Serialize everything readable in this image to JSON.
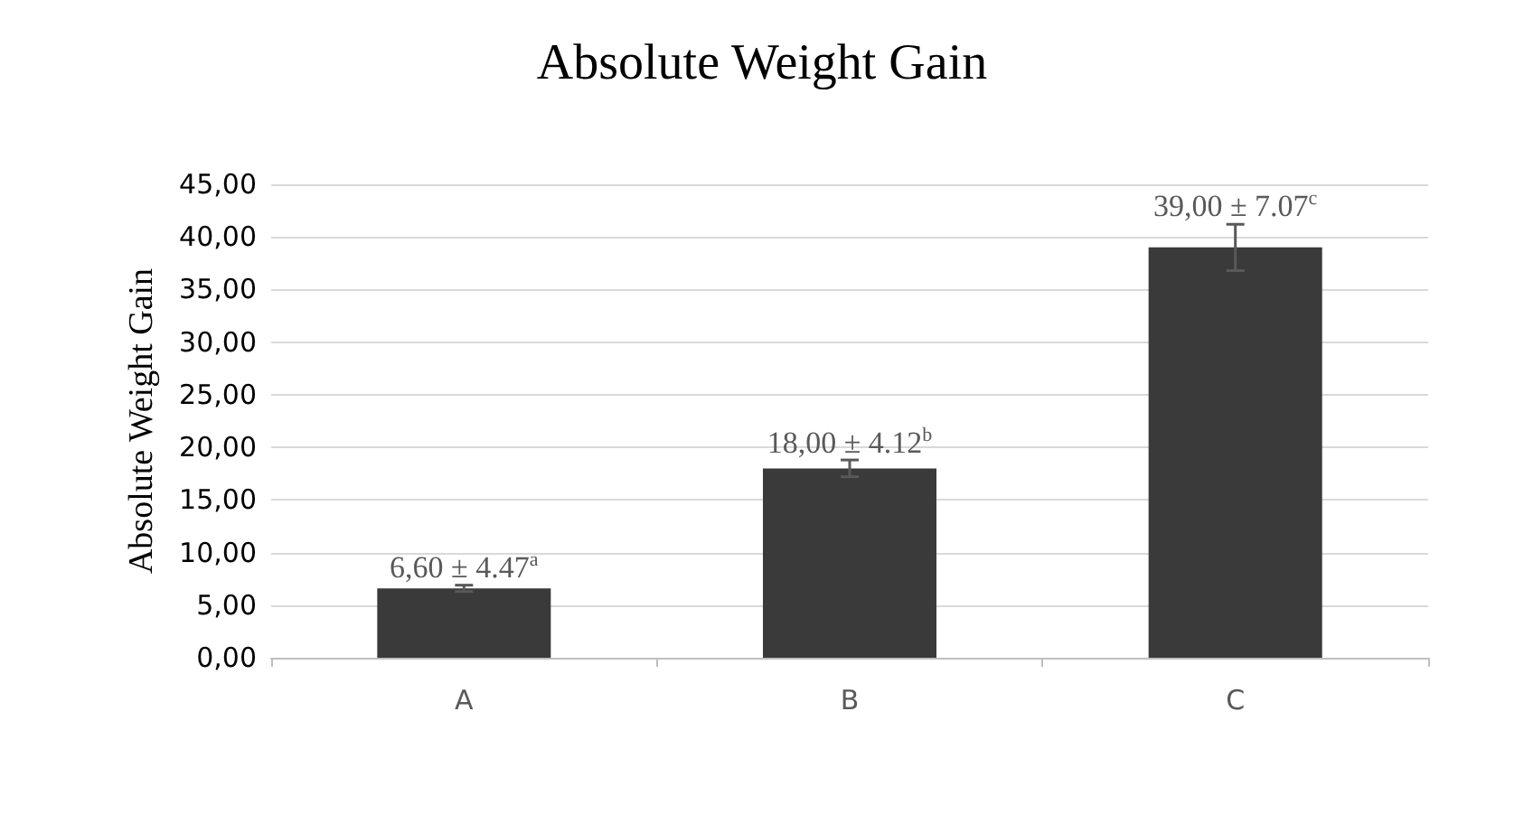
{
  "chart_data": {
    "type": "bar",
    "title": "Absolute Weight Gain",
    "ylabel": "Absolute Weight Gain",
    "categories": [
      "A",
      "B",
      "C"
    ],
    "values": [
      6.6,
      18,
      39
    ],
    "color": "#3a3a3a",
    "errors": [
      0.3,
      0.8,
      2.2
    ],
    "value_labels": [
      "6,60 ± 4.47$^{a}$",
      "18,00 ± 4.12$^{b}$",
      "39,00 ± 7.07$^{c}$"
    ],
    "ylim": [
      0,
      45
    ],
    "yticks": [
      {
        "value": 0,
        "label": "0,00"
      },
      {
        "value": 5,
        "label": "5,00"
      },
      {
        "value": 10,
        "label": "10,00"
      },
      {
        "value": 15,
        "label": "15,00"
      },
      {
        "value": 20,
        "label": "20,00"
      },
      {
        "value": 25,
        "label": "25,00"
      },
      {
        "value": 30,
        "label": "30,00"
      },
      {
        "value": 35,
        "label": "35,00"
      },
      {
        "value": 40,
        "label": "40,00"
      },
      {
        "value": 45,
        "label": "45,00"
      }
    ],
    "grid": "y"
  }
}
